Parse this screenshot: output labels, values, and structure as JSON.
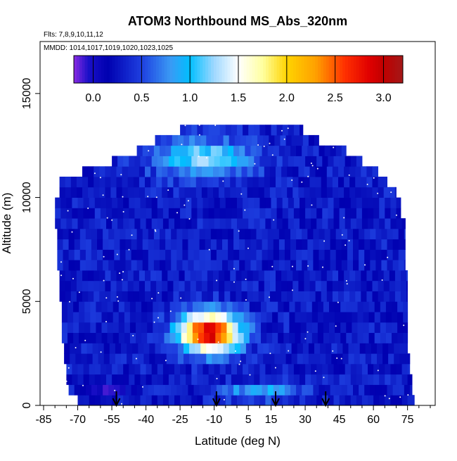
{
  "chart_data": {
    "type": "heatmap",
    "title": "ATOM3 Northbound MS_Abs_320nm",
    "subtitle_flights": "Flts: 7,8,9,10,11,12",
    "subtitle_dates": "MMDD: 1014,1017,1019,1020,1023,1025",
    "xlabel": "Latitude (deg N)",
    "ylabel": "Altitude (m)",
    "xlim": [
      -85,
      85
    ],
    "ylim": [
      0,
      17500
    ],
    "x_ticks": [
      -85,
      -70,
      -55,
      -40,
      -25,
      -10,
      5,
      15,
      30,
      45,
      60,
      75
    ],
    "x_tick_labels": [
      "-85",
      "-70",
      "-55",
      "-40",
      "-25",
      "-10",
      "5",
      "15",
      "30",
      "45",
      "60",
      "75"
    ],
    "x_minor_step": 5,
    "y_ticks": [
      0,
      5000,
      10000,
      15000
    ],
    "y_tick_labels": [
      "0",
      "5000",
      "10000",
      "15000"
    ],
    "colorbar": {
      "range": [
        -0.2,
        3.2
      ],
      "ticks": [
        0,
        0.5,
        1,
        1.5,
        2,
        2.5,
        3
      ],
      "tick_labels": [
        "0.0",
        "0.5",
        "1.0",
        "1.5",
        "2.0",
        "2.5",
        "3.0"
      ],
      "colors": [
        [
          -0.2,
          "#8a2be2"
        ],
        [
          -0.05,
          "#1a10c8"
        ],
        [
          0.15,
          "#0000b0"
        ],
        [
          0.5,
          "#1e3fe0"
        ],
        [
          0.8,
          "#3a9af5"
        ],
        [
          1.0,
          "#00bfff"
        ],
        [
          1.25,
          "#9fd8ff"
        ],
        [
          1.5,
          "#ffffff"
        ],
        [
          1.75,
          "#ffffa0"
        ],
        [
          2.0,
          "#ffd400"
        ],
        [
          2.3,
          "#ffa000"
        ],
        [
          2.6,
          "#ff3000"
        ],
        [
          2.85,
          "#e00000"
        ],
        [
          3.0,
          "#c00000"
        ],
        [
          3.2,
          "#a31818"
        ]
      ]
    },
    "altitude_bins": [
      0,
      500,
      1000,
      1500,
      2000,
      2500,
      3000,
      3500,
      4000,
      4500,
      5000,
      5500,
      6000,
      6500,
      7000,
      7500,
      8000,
      8500,
      9000,
      9500,
      10000,
      10500,
      11000,
      11500,
      12000,
      12500,
      13000
    ],
    "coverage_by_altitude": [
      [
        -70,
        78
      ],
      [
        -74,
        77
      ],
      [
        -75,
        77
      ],
      [
        -75,
        76
      ],
      [
        -76,
        76
      ],
      [
        -76,
        75
      ],
      [
        -77,
        75
      ],
      [
        -77,
        75
      ],
      [
        -77,
        75
      ],
      [
        -77,
        75
      ],
      [
        -78,
        75
      ],
      [
        -78,
        75
      ],
      [
        -78,
        75
      ],
      [
        -79,
        74
      ],
      [
        -79,
        74
      ],
      [
        -79,
        74
      ],
      [
        -79,
        74
      ],
      [
        -80,
        74
      ],
      [
        -80,
        72
      ],
      [
        -80,
        72
      ],
      [
        -78,
        70
      ],
      [
        -78,
        66
      ],
      [
        -68,
        62
      ],
      [
        -55,
        55
      ],
      [
        -44,
        48
      ],
      [
        -36,
        36
      ],
      [
        -25,
        29
      ]
    ],
    "field_background": 0.3,
    "features": [
      {
        "name": "mid-tropospheric plume",
        "lat": -12,
        "alt": 3500,
        "peak": 3.0,
        "lat_width": 13,
        "alt_width": 900
      },
      {
        "name": "upper-tropospheric enhancement",
        "lat": -14,
        "alt": 11900,
        "peak": 1.2,
        "lat_width": 22,
        "alt_width": 900
      },
      {
        "name": "near-surface enhancement",
        "lat": 10,
        "alt": 700,
        "peak": 0.9,
        "lat_width": 18,
        "alt_width": 400
      },
      {
        "name": "near-surface minimum",
        "lat": -58,
        "alt": 700,
        "peak": -0.1,
        "lat_width": 9,
        "alt_width": 300
      }
    ],
    "arrow_latitudes": [
      -53,
      -9,
      17,
      39
    ]
  }
}
